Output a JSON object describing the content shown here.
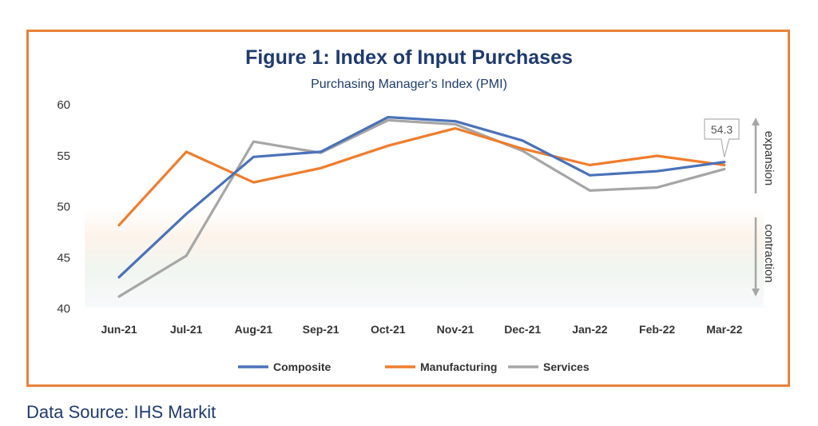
{
  "chart_data": {
    "type": "line",
    "title": "Figure 1: Index of Input Purchases",
    "subtitle": "Purchasing Manager's Index (PMI)",
    "categories": [
      "Jun-21",
      "Jul-21",
      "Aug-21",
      "Sep-21",
      "Oct-21",
      "Nov-21",
      "Dec-21",
      "Jan-22",
      "Feb-22",
      "Mar-22"
    ],
    "ylim": [
      40,
      60
    ],
    "yticks": [
      40,
      45,
      50,
      55,
      60
    ],
    "series": [
      {
        "name": "Composite",
        "color": "#4a72b8",
        "values": [
          43.0,
          49.2,
          54.8,
          55.3,
          58.7,
          58.3,
          56.4,
          53.0,
          53.4,
          54.3
        ]
      },
      {
        "name": "Manufacturing",
        "color": "#ef7d2d",
        "values": [
          48.1,
          55.3,
          52.3,
          53.7,
          55.9,
          57.6,
          55.6,
          54.0,
          54.9,
          54.0
        ]
      },
      {
        "name": "Services",
        "color": "#a6a6a6",
        "values": [
          41.1,
          45.1,
          56.3,
          55.2,
          58.4,
          58.0,
          55.4,
          51.5,
          51.8,
          53.6
        ]
      }
    ],
    "callout": "54.3",
    "side_labels": {
      "upper": "expansion",
      "lower": "contraction"
    },
    "legend_position": "bottom",
    "grid": false
  },
  "source_note": "Data Source: IHS Markit"
}
